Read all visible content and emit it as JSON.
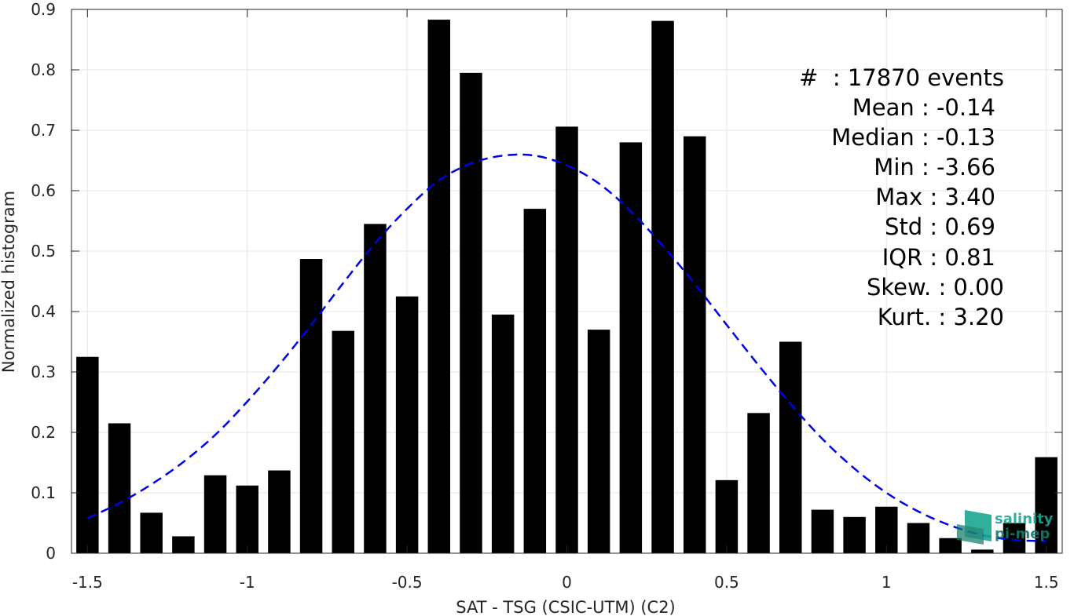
{
  "chart_data": {
    "type": "bar",
    "xlabel": "SAT - TSG (CSIC-UTM) (C2)",
    "ylabel": "Normalized histogram",
    "xlim": [
      -1.55,
      1.55
    ],
    "ylim": [
      0,
      0.9
    ],
    "xticks": [
      -1.5,
      -1,
      -0.5,
      0,
      0.5,
      1,
      1.5
    ],
    "xtick_labels": [
      "-1.5",
      "-1",
      "-0.5",
      "0",
      "0.5",
      "1",
      "1.5"
    ],
    "yticks": [
      0,
      0.1,
      0.2,
      0.3,
      0.4,
      0.5,
      0.6,
      0.7,
      0.8,
      0.9
    ],
    "ytick_labels": [
      "0",
      "0.1",
      "0.2",
      "0.3",
      "0.4",
      "0.5",
      "0.6",
      "0.7",
      "0.8",
      "0.9"
    ],
    "grid": true,
    "bar_color": "#000000",
    "bars": {
      "x": [
        -1.5,
        -1.4,
        -1.3,
        -1.2,
        -1.1,
        -1.0,
        -0.9,
        -0.8,
        -0.7,
        -0.6,
        -0.5,
        -0.4,
        -0.3,
        -0.2,
        -0.1,
        0.0,
        0.1,
        0.2,
        0.3,
        0.4,
        0.5,
        0.6,
        0.7,
        0.8,
        0.9,
        1.0,
        1.1,
        1.2,
        1.3,
        1.4,
        1.5
      ],
      "values": [
        0.325,
        0.215,
        0.067,
        0.028,
        0.129,
        0.112,
        0.137,
        0.487,
        0.368,
        0.545,
        0.425,
        0.883,
        0.795,
        0.395,
        0.57,
        0.706,
        0.37,
        0.68,
        0.881,
        0.69,
        0.121,
        0.232,
        0.35,
        0.072,
        0.06,
        0.077,
        0.05,
        0.025,
        0.006,
        0.05,
        0.159
      ]
    },
    "fit_curve": {
      "style": "dashed",
      "color": "#0000e6",
      "x": [
        -1.5,
        -1.4,
        -1.3,
        -1.2,
        -1.1,
        -1.0,
        -0.9,
        -0.8,
        -0.7,
        -0.6,
        -0.5,
        -0.4,
        -0.3,
        -0.2,
        -0.1,
        0.0,
        0.1,
        0.2,
        0.3,
        0.4,
        0.5,
        0.6,
        0.7,
        0.8,
        0.9,
        1.0,
        1.1,
        1.2,
        1.3,
        1.4,
        1.5
      ],
      "values": [
        0.058,
        0.083,
        0.114,
        0.151,
        0.196,
        0.251,
        0.312,
        0.378,
        0.447,
        0.513,
        0.57,
        0.617,
        0.645,
        0.658,
        0.658,
        0.642,
        0.612,
        0.566,
        0.509,
        0.446,
        0.378,
        0.311,
        0.247,
        0.189,
        0.14,
        0.1,
        0.069,
        0.046,
        0.03,
        0.022,
        0.02
      ]
    }
  },
  "stats": {
    "lines": [
      "#  : 17870 events",
      "Mean : -0.14",
      "Median : -0.13",
      "Min : -3.66",
      "Max : 3.40",
      "Std : 0.69",
      "IQR : 0.81",
      "Skew. : 0.00",
      "Kurt. : 3.20"
    ]
  },
  "logo": {
    "line1": "salinity",
    "line2": "pi-mep",
    "color": "#1aa892",
    "color_dark": "#137a6a"
  }
}
